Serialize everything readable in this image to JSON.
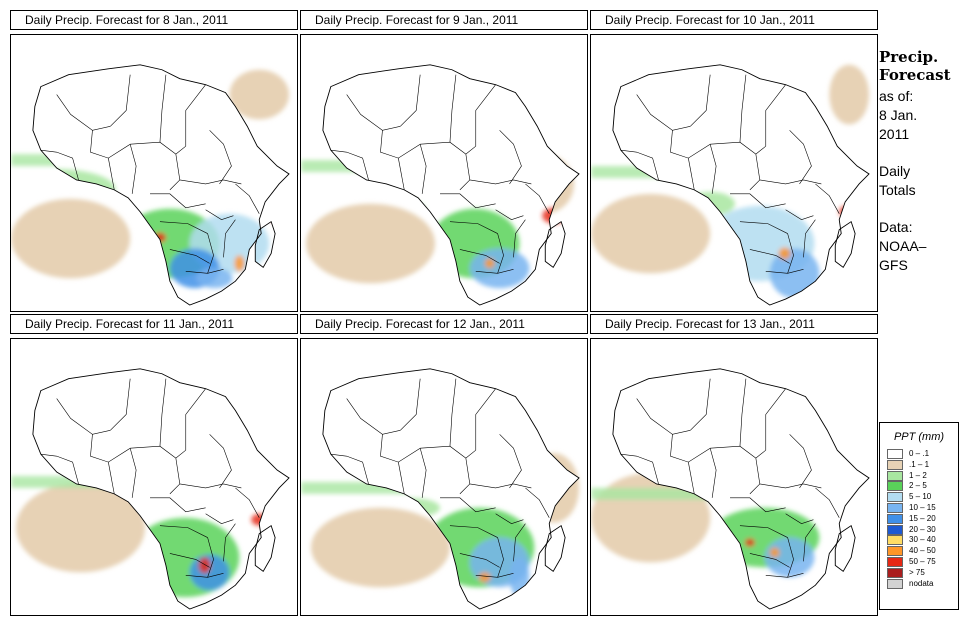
{
  "panels": [
    {
      "title": "Daily Precip. Forecast for  8 Jan., 2011",
      "variant": 0
    },
    {
      "title": "Daily Precip. Forecast for  9 Jan., 2011",
      "variant": 1
    },
    {
      "title": "Daily Precip. Forecast for  10 Jan., 2011",
      "variant": 2
    },
    {
      "title": "Daily Precip. Forecast for  11 Jan., 2011",
      "variant": 3
    },
    {
      "title": "Daily Precip. Forecast for  12 Jan., 2011",
      "variant": 4
    },
    {
      "title": "Daily Precip. Forecast for  13 Jan., 2011",
      "variant": 5
    }
  ],
  "side": {
    "heading1": "Precip.",
    "heading2": "Forecast",
    "asof": "as of:",
    "date1": "8 Jan.",
    "date2": "2011",
    "daily1": "Daily",
    "daily2": "Totals",
    "data1": "Data:",
    "data2": "NOAA–",
    "data3": "GFS"
  },
  "legend": {
    "title": "PPT (mm)",
    "items": [
      {
        "label": "0 – .1",
        "color": "#ffffff"
      },
      {
        "label": ".1 – 1",
        "color": "#e7d2b5"
      },
      {
        "label": "1 – 2",
        "color": "#a8e6a0"
      },
      {
        "label": "2 – 5",
        "color": "#5ad25a"
      },
      {
        "label": "5 – 10",
        "color": "#b2dcf0"
      },
      {
        "label": "10 – 15",
        "color": "#78b4f0"
      },
      {
        "label": "15 – 20",
        "color": "#4090e8"
      },
      {
        "label": "20 – 30",
        "color": "#1e5ad2"
      },
      {
        "label": "30 – 40",
        "color": "#ffdc64"
      },
      {
        "label": "40 – 50",
        "color": "#ff9628"
      },
      {
        "label": "50 – 75",
        "color": "#e62814"
      },
      {
        "label": "> 75",
        "color": "#aa1e1e"
      },
      {
        "label": "nodata",
        "color": "#d2d2d2"
      }
    ]
  }
}
